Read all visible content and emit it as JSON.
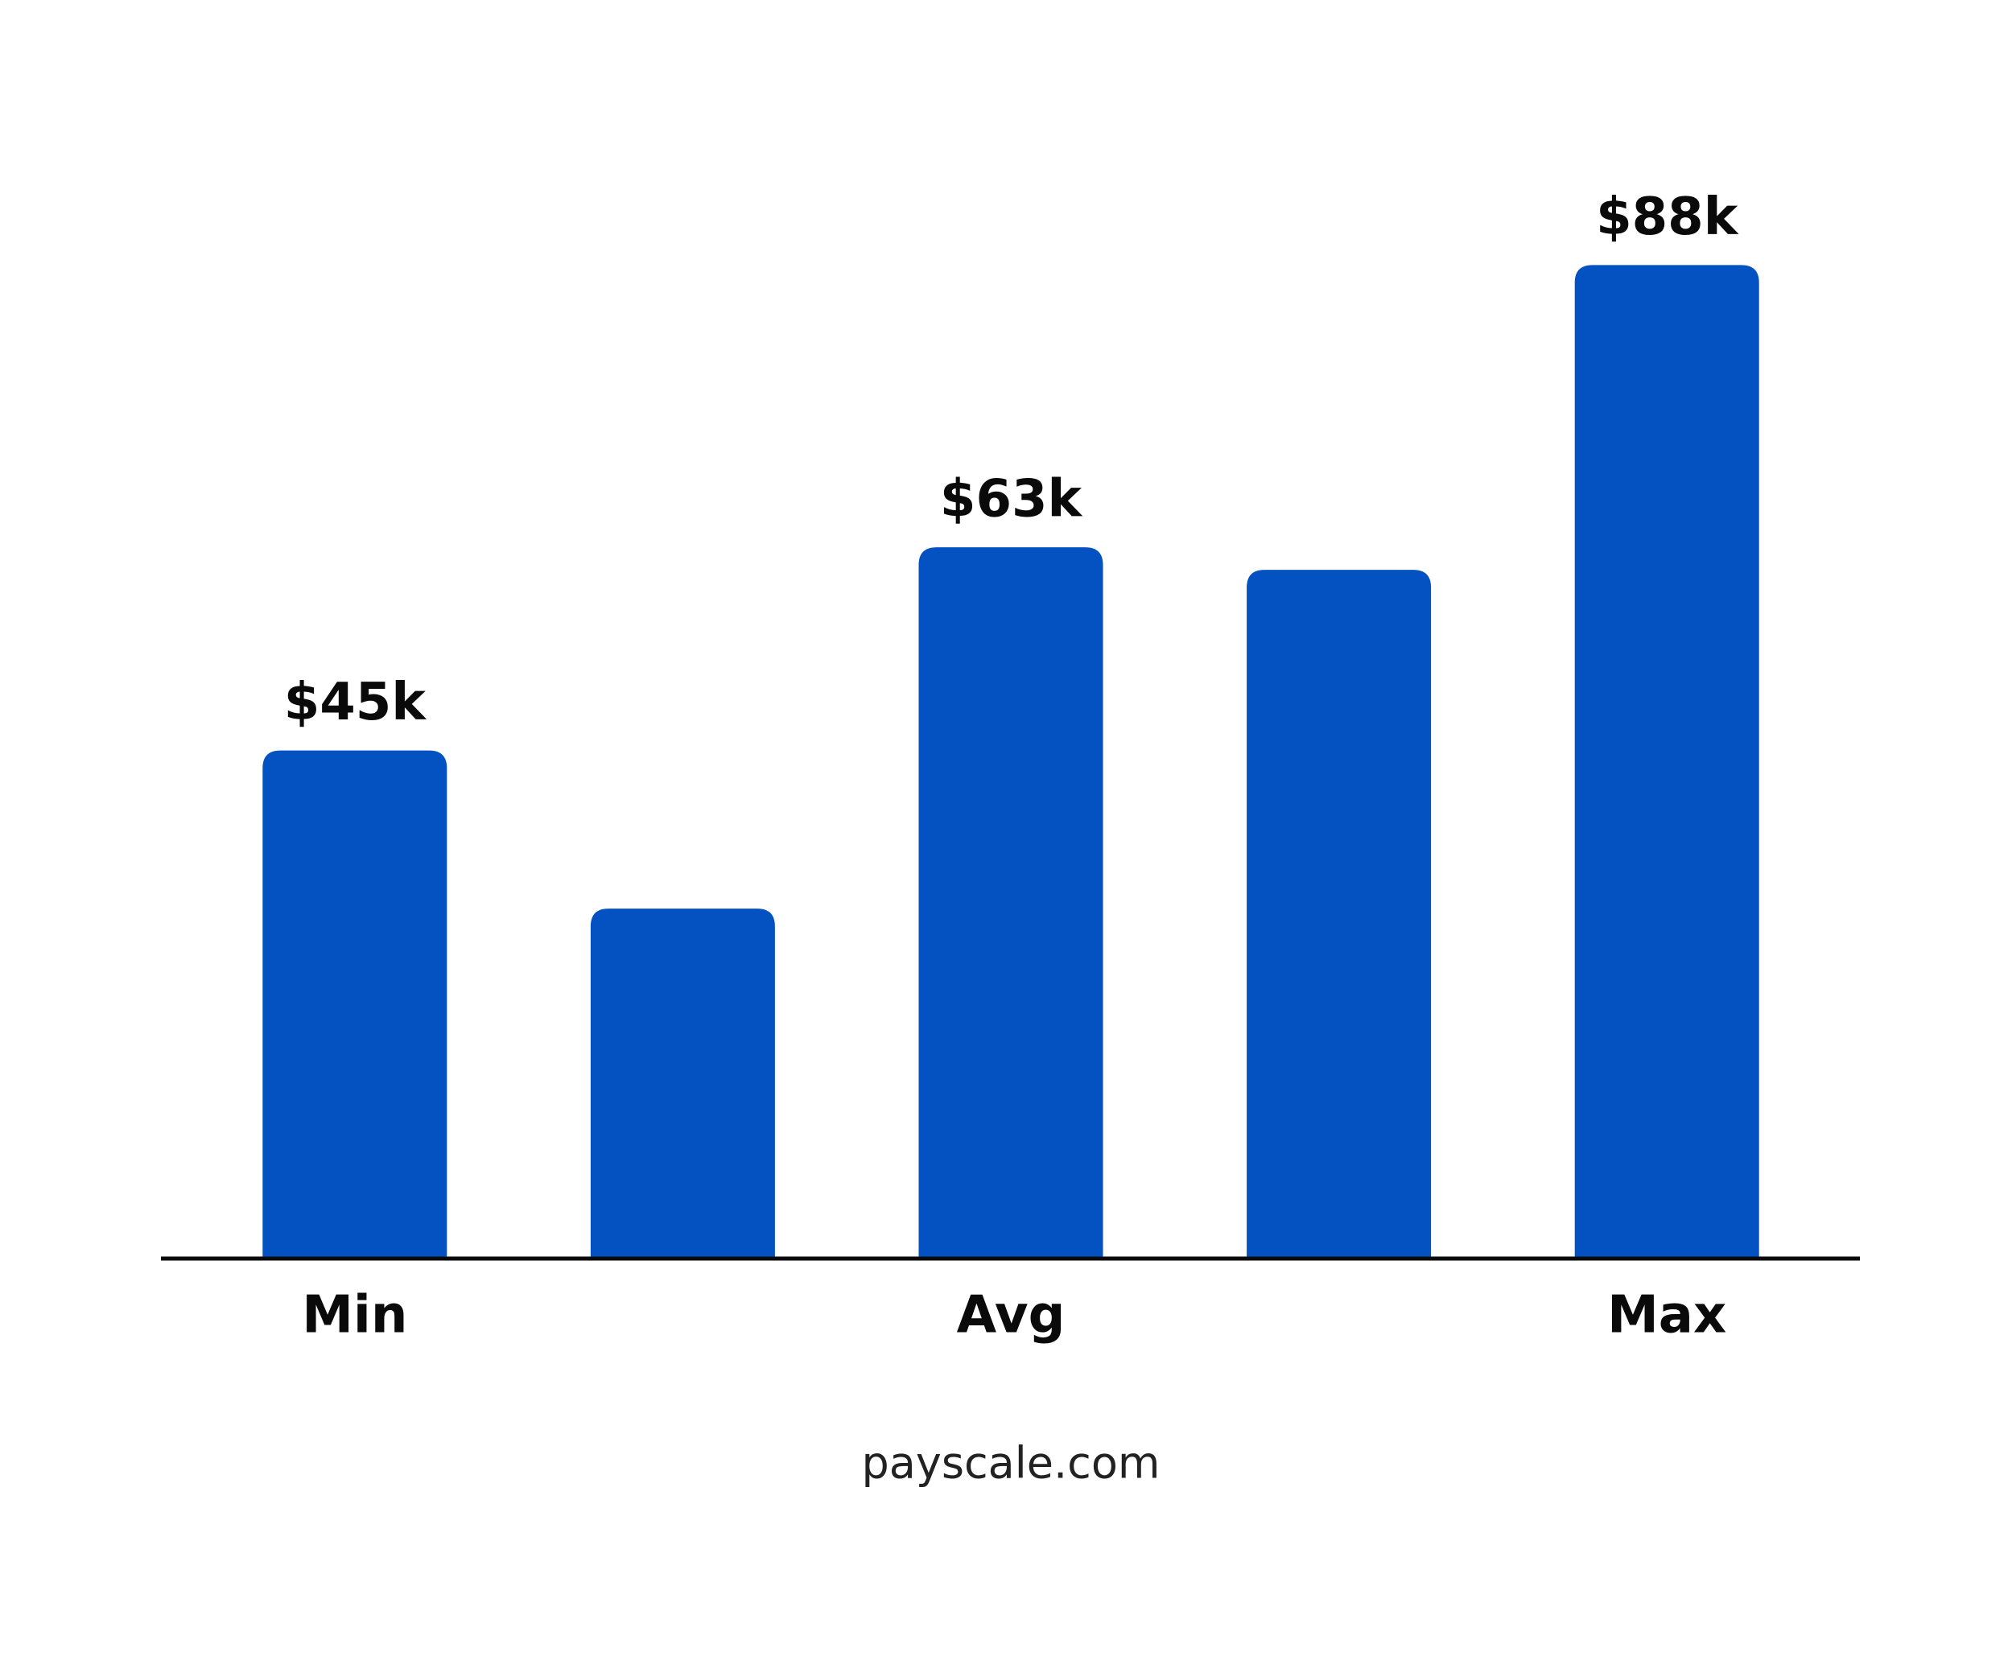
{
  "chart_data": {
    "type": "bar",
    "categories": [
      "Min",
      null,
      "Avg",
      null,
      "Max"
    ],
    "values": [
      45,
      31,
      63,
      61,
      88
    ],
    "value_labels": [
      "$45k",
      null,
      "$63k",
      null,
      "$88k"
    ],
    "color": "#0452c1",
    "ylim": [
      0,
      100
    ],
    "source": "payscale.com"
  }
}
